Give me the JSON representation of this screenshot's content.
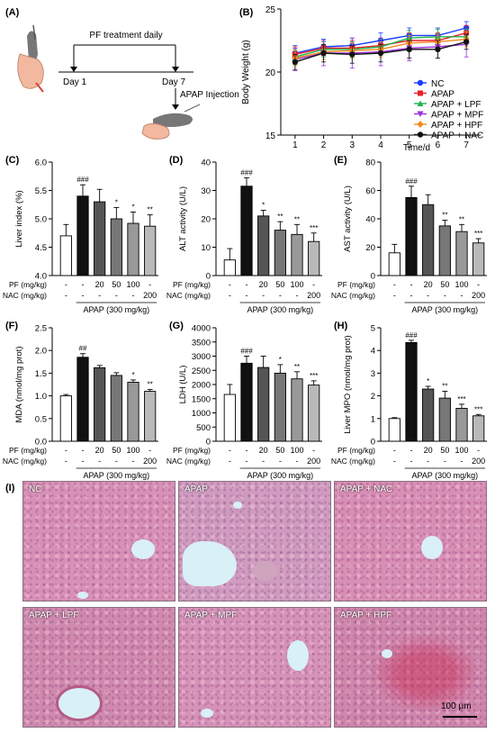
{
  "panel_labels": [
    "(A)",
    "(B)",
    "(C)",
    "(D)",
    "(E)",
    "(F)",
    "(G)",
    "(H)",
    "(I)"
  ],
  "schematic": {
    "title": "PF treatment daily",
    "day1": "Day 1",
    "day7": "Day 7",
    "injection": "APAP Injection"
  },
  "colors": {
    "nc": "#1a3cff",
    "apap": "#e8202a",
    "lpf": "#21b24b",
    "mpf": "#9b30d9",
    "hpf": "#f28a1c",
    "nac": "#111111",
    "bar_nc": "#ffffff",
    "bar_apap": "#111111",
    "bar_pf20": "#555555",
    "bar_pf50": "#777777",
    "bar_pf100": "#999999",
    "bar_nac": "#b9b9b9",
    "tissue": "#d98fb4"
  },
  "dose_table": {
    "pf_label": "PF (mg/kg)",
    "nac_label": "NAC (mg/kg)",
    "pf": [
      "-",
      "-",
      "20",
      "50",
      "100",
      "-"
    ],
    "nac": [
      "-",
      "-",
      "-",
      "-",
      "-",
      "200"
    ],
    "apap_label": "APAP (300 mg/kg)"
  },
  "chart_data": [
    {
      "id": "B",
      "type": "line",
      "xlabel": "Time/d",
      "ylabel": "Body Weight (g)",
      "x": [
        1,
        2,
        3,
        4,
        5,
        6,
        7
      ],
      "xlim": [
        0.5,
        7.5
      ],
      "ylim": [
        15,
        25
      ],
      "yticks": [
        "15",
        "20",
        "25"
      ],
      "legend_position": "bottom-right",
      "series": [
        {
          "name": "NC",
          "marker": "circle",
          "values": [
            21.5,
            22.0,
            22.1,
            22.5,
            22.9,
            22.9,
            23.5
          ],
          "errors": [
            0.6,
            0.6,
            0.6,
            0.6,
            0.6,
            0.6,
            0.5
          ]
        },
        {
          "name": "APAP",
          "marker": "square",
          "values": [
            21.4,
            21.9,
            21.9,
            22.1,
            22.5,
            22.5,
            23.1
          ],
          "errors": [
            0.6,
            0.6,
            0.6,
            0.6,
            0.6,
            0.6,
            0.6
          ]
        },
        {
          "name": "APAP + LPF",
          "marker": "triangle-up",
          "values": [
            21.2,
            21.8,
            21.8,
            22.0,
            22.7,
            22.8,
            22.8
          ],
          "errors": [
            0.6,
            0.6,
            0.6,
            0.6,
            0.6,
            0.6,
            0.6
          ]
        },
        {
          "name": "APAP + MPF",
          "marker": "triangle-down",
          "values": [
            21.0,
            21.5,
            21.5,
            21.6,
            21.9,
            22.0,
            22.2
          ],
          "errors": [
            0.9,
            1.0,
            1.2,
            1.1,
            1.0,
            0.9,
            1.0
          ]
        },
        {
          "name": "APAP + HPF",
          "marker": "diamond",
          "values": [
            21.1,
            21.6,
            21.7,
            21.8,
            22.3,
            22.4,
            22.6
          ],
          "errors": [
            0.6,
            0.6,
            0.6,
            0.6,
            0.6,
            0.6,
            0.6
          ]
        },
        {
          "name": "APAP + NAC",
          "marker": "circle",
          "values": [
            20.8,
            21.5,
            21.4,
            21.5,
            21.8,
            21.8,
            22.4
          ],
          "errors": [
            0.6,
            0.7,
            0.7,
            0.7,
            0.7,
            0.7,
            0.6
          ]
        }
      ]
    },
    {
      "id": "C",
      "type": "bar",
      "ylabel": "Liver index (%)",
      "ylim": [
        4.0,
        6.0
      ],
      "yticks": [
        "4.0",
        "4.5",
        "5.0",
        "5.5",
        "6.0"
      ],
      "values": [
        4.7,
        5.4,
        5.3,
        5.0,
        4.92,
        4.87
      ],
      "errors": [
        0.2,
        0.2,
        0.22,
        0.2,
        0.2,
        0.2
      ],
      "annotations": [
        "",
        "###",
        "",
        "*",
        "*",
        "**"
      ]
    },
    {
      "id": "D",
      "type": "bar",
      "ylabel": "ALT activity (U/L)",
      "ylim": [
        0,
        40
      ],
      "yticks": [
        "0",
        "10",
        "20",
        "30",
        "40"
      ],
      "values": [
        5.5,
        31.5,
        21.0,
        16.0,
        14.5,
        12.0
      ],
      "errors": [
        4.0,
        3.0,
        2.0,
        3.0,
        3.5,
        3.0
      ],
      "annotations": [
        "",
        "###",
        "*",
        "**",
        "**",
        "***"
      ]
    },
    {
      "id": "E",
      "type": "bar",
      "ylabel": "AST activity (U/L)",
      "ylim": [
        0,
        80
      ],
      "yticks": [
        "0",
        "20",
        "40",
        "60",
        "80"
      ],
      "values": [
        16.0,
        55.0,
        50.0,
        35.0,
        31.0,
        23.0
      ],
      "errors": [
        6.0,
        8.0,
        7.0,
        4.0,
        5.0,
        3.0
      ],
      "annotations": [
        "",
        "###",
        "",
        "**",
        "**",
        "***"
      ]
    },
    {
      "id": "F",
      "type": "bar",
      "ylabel": "MDA (nmol/mg prot)",
      "ylim": [
        0.0,
        2.5
      ],
      "yticks": [
        "0.0",
        "0.5",
        "1.0",
        "1.5",
        "2.0",
        "2.5"
      ],
      "values": [
        1.0,
        1.85,
        1.62,
        1.45,
        1.3,
        1.1
      ],
      "errors": [
        0.03,
        0.08,
        0.05,
        0.06,
        0.05,
        0.04
      ],
      "annotations": [
        "",
        "##",
        "",
        "",
        "*",
        "**"
      ]
    },
    {
      "id": "G",
      "type": "bar",
      "ylabel": "LDH (U/L)",
      "ylim": [
        0,
        4000
      ],
      "yticks": [
        "0",
        "500",
        "1000",
        "1500",
        "2000",
        "2500",
        "3000",
        "3500",
        "4000"
      ],
      "values": [
        1650,
        2750,
        2600,
        2400,
        2200,
        1980
      ],
      "errors": [
        350,
        250,
        400,
        300,
        250,
        150
      ],
      "annotations": [
        "",
        "###",
        "",
        "*",
        "**",
        "***"
      ]
    },
    {
      "id": "H",
      "type": "bar",
      "ylabel": "Liver MPO (nmol/mg prot)",
      "ylim": [
        0,
        5
      ],
      "yticks": [
        "0",
        "1",
        "2",
        "3",
        "4",
        "5"
      ],
      "values": [
        1.0,
        4.35,
        2.3,
        1.9,
        1.45,
        1.12
      ],
      "errors": [
        0.04,
        0.1,
        0.12,
        0.3,
        0.18,
        0.06
      ],
      "annotations": [
        "",
        "###",
        "*",
        "**",
        "***",
        "***"
      ]
    }
  ],
  "histology": {
    "panels": [
      "NC",
      "APAP",
      "APAP + NAC",
      "APAP + LPF",
      "APAP + MPF",
      "APAP + HPF"
    ],
    "scale_bar": "100 μm"
  }
}
